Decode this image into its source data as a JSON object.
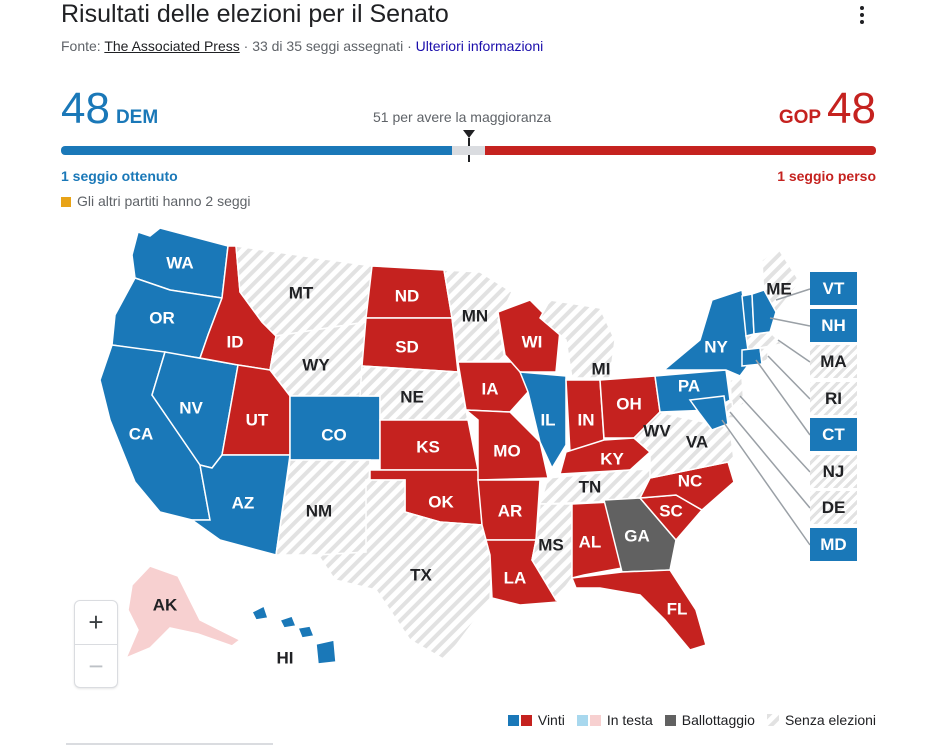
{
  "header": {
    "title": "Risultati delle elezioni per il Senato",
    "source_prefix": "Fonte: ",
    "source_name": "The Associated Press",
    "separator": "·",
    "seats_assigned": "33 di 35 seggi assegnati",
    "more_info": "Ulteriori informazioni"
  },
  "summary": {
    "dem_count": "48",
    "dem_label": "DEM",
    "gop_count": "48",
    "gop_label": "GOP",
    "majority_text": "51 per avere la maggioranza",
    "dem_seats_changed": "1 seggio ottenuto",
    "gop_seats_changed": "1 seggio perso",
    "others_text": "Gli altri partiti hanno 2 seggi",
    "dem_seats": 48,
    "gop_seats": 48,
    "total_seats": 100,
    "majority_seats": 51
  },
  "colors": {
    "dem": "#1a78b8",
    "gop": "#c5221f",
    "leading_dem": "#a8d8ee",
    "leading_gop": "#f7d0d0",
    "runoff": "#616161",
    "no_election": "#e6e6e6",
    "others": "#e8a317"
  },
  "map": {
    "states": [
      {
        "abbr": "WA",
        "status": "dem"
      },
      {
        "abbr": "OR",
        "status": "dem"
      },
      {
        "abbr": "CA",
        "status": "dem"
      },
      {
        "abbr": "NV",
        "status": "dem"
      },
      {
        "abbr": "AZ",
        "status": "dem"
      },
      {
        "abbr": "ID",
        "status": "gop"
      },
      {
        "abbr": "UT",
        "status": "gop"
      },
      {
        "abbr": "MT",
        "status": "none"
      },
      {
        "abbr": "WY",
        "status": "none"
      },
      {
        "abbr": "CO",
        "status": "dem"
      },
      {
        "abbr": "NM",
        "status": "none"
      },
      {
        "abbr": "ND",
        "status": "gop"
      },
      {
        "abbr": "SD",
        "status": "gop"
      },
      {
        "abbr": "NE",
        "status": "none"
      },
      {
        "abbr": "KS",
        "status": "gop"
      },
      {
        "abbr": "OK",
        "status": "gop"
      },
      {
        "abbr": "TX",
        "status": "none"
      },
      {
        "abbr": "MN",
        "status": "none"
      },
      {
        "abbr": "IA",
        "status": "gop"
      },
      {
        "abbr": "MO",
        "status": "gop"
      },
      {
        "abbr": "AR",
        "status": "gop"
      },
      {
        "abbr": "LA",
        "status": "gop"
      },
      {
        "abbr": "WI",
        "status": "gop"
      },
      {
        "abbr": "IL",
        "status": "dem"
      },
      {
        "abbr": "MI",
        "status": "none"
      },
      {
        "abbr": "IN",
        "status": "gop"
      },
      {
        "abbr": "OH",
        "status": "gop"
      },
      {
        "abbr": "KY",
        "status": "gop"
      },
      {
        "abbr": "TN",
        "status": "none"
      },
      {
        "abbr": "MS",
        "status": "none"
      },
      {
        "abbr": "AL",
        "status": "gop"
      },
      {
        "abbr": "GA",
        "status": "runoff"
      },
      {
        "abbr": "FL",
        "status": "gop"
      },
      {
        "abbr": "SC",
        "status": "gop"
      },
      {
        "abbr": "NC",
        "status": "gop"
      },
      {
        "abbr": "VA",
        "status": "none"
      },
      {
        "abbr": "WV",
        "status": "none"
      },
      {
        "abbr": "PA",
        "status": "dem"
      },
      {
        "abbr": "NY",
        "status": "dem"
      },
      {
        "abbr": "ME",
        "status": "none"
      },
      {
        "abbr": "AK",
        "status": "leading_gop"
      },
      {
        "abbr": "HI",
        "status": "dem"
      }
    ],
    "small_states": [
      {
        "abbr": "VT",
        "status": "dem"
      },
      {
        "abbr": "NH",
        "status": "dem"
      },
      {
        "abbr": "MA",
        "status": "none"
      },
      {
        "abbr": "RI",
        "status": "none"
      },
      {
        "abbr": "CT",
        "status": "dem"
      },
      {
        "abbr": "NJ",
        "status": "none"
      },
      {
        "abbr": "DE",
        "status": "none"
      },
      {
        "abbr": "MD",
        "status": "dem"
      }
    ],
    "zoom_in": "+",
    "zoom_out": "−"
  },
  "legend": {
    "won": "Vinti",
    "leading": "In testa",
    "runoff": "Ballottaggio",
    "no_election": "Senza elezioni"
  }
}
